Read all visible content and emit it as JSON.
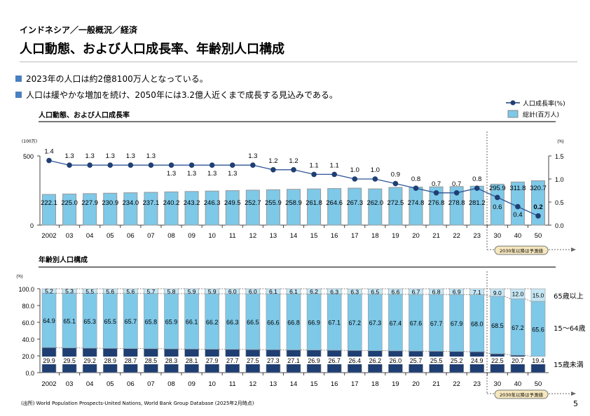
{
  "header": {
    "breadcrumb": "インドネシア／一般概況／経済",
    "title": "人口動態、および人口成長率、年齢別人口構成"
  },
  "bullets": [
    "2023年の人口は約2億8100万人となっている。",
    "人口は緩やかな増加を続け、2050年には3.2億人近くまで成長する見込みである。"
  ],
  "colors": {
    "bar": "#7ec8e8",
    "line": "#1f3f73",
    "under15": "#1f3f73",
    "age15_64": "#7ec8e8",
    "over65": "#c5e6f5",
    "bullet": "#4a7fc0",
    "forecast_badge": "#f6e7bd"
  },
  "chart_data": [
    {
      "type": "bar+line",
      "title": "人口動態、および人口成長率",
      "categories": [
        "2002",
        "03",
        "04",
        "05",
        "06",
        "07",
        "08",
        "09",
        "10",
        "11",
        "12",
        "13",
        "14",
        "15",
        "16",
        "17",
        "18",
        "19",
        "20",
        "21",
        "22",
        "23",
        "30",
        "40",
        "50"
      ],
      "left_unit": "(100万)",
      "right_unit": "(%)",
      "ylim_left": [
        0,
        500
      ],
      "yticks_left": [
        "0",
        "500"
      ],
      "ylim_right": [
        0,
        1.5
      ],
      "yticks_right": [
        "0.0",
        "0.5",
        "1.0",
        "1.5"
      ],
      "series": [
        {
          "name": "総計(百万人)",
          "kind": "bar",
          "values": [
            222.1,
            225.0,
            227.9,
            230.9,
            234.0,
            237.1,
            240.2,
            243.2,
            246.3,
            249.5,
            252.7,
            255.9,
            258.9,
            261.8,
            264.6,
            267.3,
            262.0,
            272.5,
            274.8,
            276.8,
            278.8,
            281.2,
            295.9,
            311.8,
            320.7
          ]
        },
        {
          "name": "人口成長率(%)",
          "kind": "line",
          "values": [
            1.4,
            1.3,
            1.3,
            1.3,
            1.3,
            1.3,
            1.3,
            1.3,
            1.3,
            1.3,
            1.3,
            1.2,
            1.2,
            1.1,
            1.1,
            1.0,
            1.0,
            0.9,
            0.8,
            0.7,
            0.7,
            0.8,
            0.6,
            0.4,
            0.2
          ]
        }
      ],
      "forecast_note": "2030年以降は予測値"
    },
    {
      "type": "stacked-bar",
      "title": "年齢別人口構成",
      "unit": "(%)",
      "ylim": [
        0,
        100
      ],
      "yticks": [
        "0.0",
        "20.0",
        "40.0",
        "60.0",
        "80.0",
        "100.0"
      ],
      "categories": [
        "2002",
        "03",
        "04",
        "05",
        "06",
        "07",
        "08",
        "09",
        "10",
        "11",
        "12",
        "13",
        "14",
        "15",
        "16",
        "17",
        "18",
        "19",
        "20",
        "21",
        "22",
        "23",
        "30",
        "40",
        "50"
      ],
      "series": [
        {
          "name": "15歳未満",
          "values": [
            29.9,
            29.5,
            29.2,
            28.9,
            28.7,
            28.5,
            28.3,
            28.1,
            27.9,
            27.7,
            27.5,
            27.3,
            27.1,
            26.9,
            26.7,
            26.4,
            26.2,
            26.0,
            25.7,
            25.5,
            25.2,
            24.9,
            22.5,
            20.7,
            19.4
          ]
        },
        {
          "name": "15～64歳",
          "values": [
            64.9,
            65.1,
            65.3,
            65.5,
            65.7,
            65.8,
            65.9,
            66.1,
            66.2,
            66.3,
            66.5,
            66.6,
            66.8,
            66.9,
            67.1,
            67.2,
            67.3,
            67.4,
            67.6,
            67.7,
            67.9,
            68.0,
            68.5,
            67.2,
            65.6
          ]
        },
        {
          "name": "65歳以上",
          "values": [
            5.2,
            5.3,
            5.5,
            5.6,
            5.6,
            5.7,
            5.8,
            5.9,
            5.9,
            6.0,
            6.0,
            6.1,
            6.1,
            6.2,
            6.3,
            6.3,
            6.5,
            6.6,
            6.7,
            6.8,
            6.9,
            7.1,
            9.0,
            12.0,
            15.0
          ]
        }
      ],
      "forecast_note": "2030年以降は予測値"
    }
  ],
  "footer": {
    "source": "(出所) World Population Prospects-United Nations, World Bank Group Database (2025年2月時点)",
    "page": "5"
  }
}
